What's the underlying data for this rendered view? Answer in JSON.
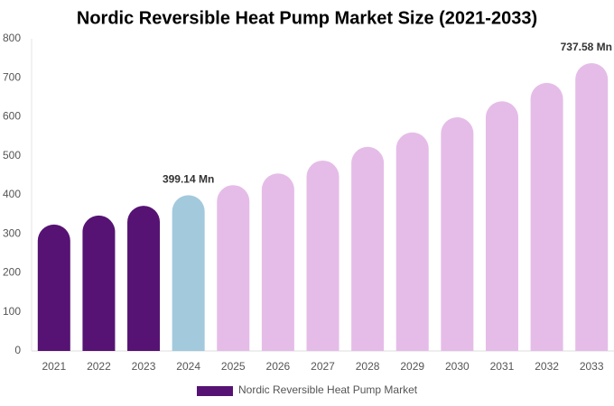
{
  "chart_data": {
    "type": "bar",
    "title": "Nordic Reversible Heat Pump Market Size (2021-2033)",
    "categories": [
      "2021",
      "2022",
      "2023",
      "2024",
      "2025",
      "2026",
      "2027",
      "2028",
      "2029",
      "2030",
      "2031",
      "2032",
      "2033"
    ],
    "series": [
      {
        "name": "Nordic Reversible Heat Pump Market",
        "color": "#561373",
        "values": [
          324,
          347,
          372,
          399.14,
          425,
          455,
          488,
          523,
          560,
          599,
          640,
          687,
          737.58
        ],
        "value_labels": [
          null,
          null,
          null,
          "399.14 Mn",
          null,
          null,
          null,
          null,
          null,
          null,
          null,
          null,
          "737.58 Mn"
        ],
        "bar_colors": [
          "#561373",
          "#561373",
          "#561373",
          "#a3c9dd",
          "#e5bce8",
          "#e5bce8",
          "#e5bce8",
          "#e5bce8",
          "#e5bce8",
          "#e5bce8",
          "#e5bce8",
          "#e5bce8",
          "#e5bce8"
        ]
      }
    ],
    "ylim": [
      0,
      800
    ],
    "yticks": [
      0,
      100,
      200,
      300,
      400,
      500,
      600,
      700,
      800
    ],
    "legend": "bottom"
  }
}
